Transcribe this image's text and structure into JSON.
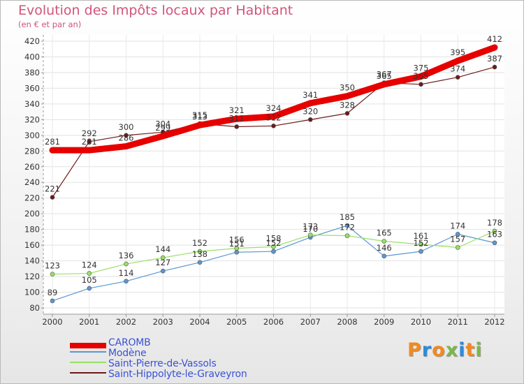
{
  "chart_data": {
    "type": "line",
    "title": "Evolution des Impôts locaux par Habitant",
    "subtitle": "(en € et par an)",
    "categories": [
      "2000",
      "2001",
      "2002",
      "2003",
      "2004",
      "2005",
      "2006",
      "2007",
      "2008",
      "2009",
      "2010",
      "2011",
      "2012"
    ],
    "ylim": [
      80,
      420
    ],
    "yticks": [
      80,
      100,
      120,
      140,
      160,
      180,
      200,
      220,
      240,
      260,
      280,
      300,
      320,
      340,
      360,
      380,
      400,
      420
    ],
    "grid": true,
    "legend_position": "bottom-left",
    "series": [
      {
        "name": "CAROMB",
        "color": "#e60000",
        "values": [
          281,
          281,
          286,
          299,
          313,
          321,
          324,
          341,
          350,
          365,
          375,
          395,
          412
        ]
      },
      {
        "name": "Modène",
        "color": "#5b97d3",
        "values": [
          89,
          105,
          114,
          127,
          138,
          151,
          152,
          170,
          185,
          146,
          152,
          174,
          163
        ]
      },
      {
        "name": "Saint-Pierre-de-Vassols",
        "color": "#99e066",
        "values": [
          123,
          124,
          136,
          144,
          152,
          156,
          158,
          173,
          172,
          165,
          161,
          157,
          178
        ]
      },
      {
        "name": "Saint-Hippolyte-le-Graveyron",
        "color": "#6b1a1a",
        "values": [
          221,
          292,
          300,
          304,
          315,
          311,
          312,
          320,
          328,
          367,
          365,
          374,
          387
        ]
      }
    ]
  },
  "branding": {
    "logo_text": "Proxiti",
    "logo_colors": [
      "#f28a1e",
      "#2f8bd8",
      "#f28a1e",
      "#7ab84a",
      "#2f8bd8",
      "#f28a1e",
      "#7ab84a"
    ]
  }
}
